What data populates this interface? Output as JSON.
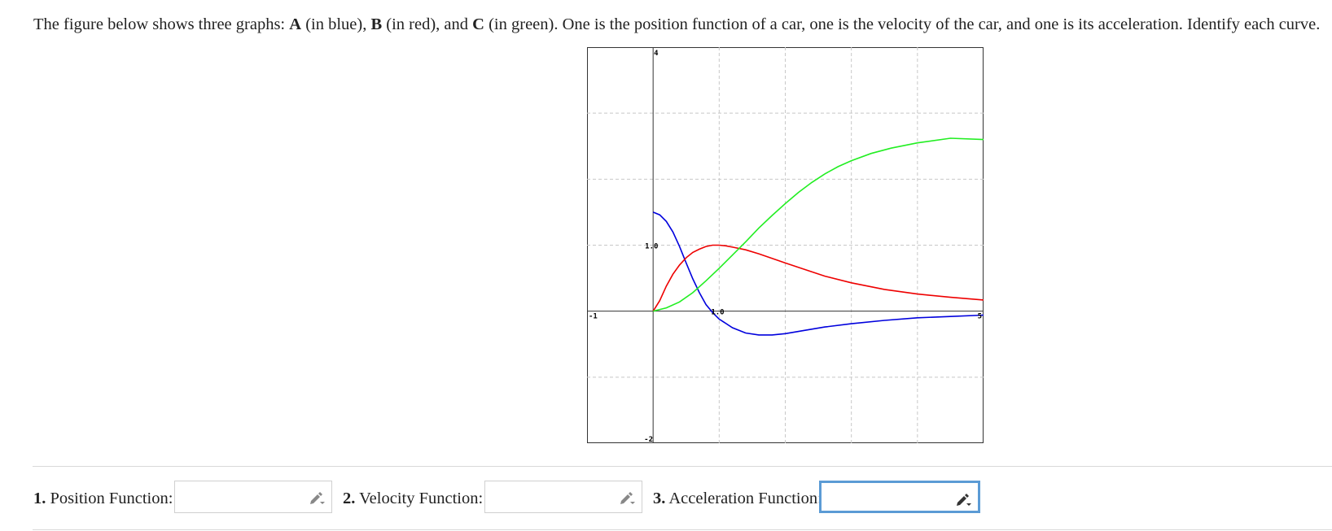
{
  "question": {
    "text_1": "The figure below shows three graphs: ",
    "label_a": "A",
    "text_2": " (in blue), ",
    "label_b": "B",
    "text_3": " (in red), and ",
    "label_c": "C",
    "text_4": " (in green). One is the position function of a car, one is the velocity of the car, and one is its acceleration. Identify each curve."
  },
  "chart_data": {
    "type": "line",
    "xlim": [
      -1,
      5
    ],
    "ylim": [
      -2,
      4
    ],
    "grid": true,
    "tick_labels": {
      "x_min": "-1",
      "x_max": "5",
      "x_mid": "1.0",
      "y_min": "-2",
      "y_max": "4",
      "y_mid": "1.0"
    },
    "series": [
      {
        "color": "#0000dd",
        "x": [
          0,
          0.1,
          0.2,
          0.3,
          0.4,
          0.5,
          0.6,
          0.7,
          0.8,
          0.9,
          1.0,
          1.2,
          1.4,
          1.6,
          1.8,
          2.0,
          2.3,
          2.6,
          3.0,
          3.5,
          4.0,
          4.5,
          5.0
        ],
        "y": [
          1.5,
          1.46,
          1.36,
          1.2,
          0.98,
          0.73,
          0.49,
          0.28,
          0.1,
          -0.02,
          -0.12,
          -0.25,
          -0.33,
          -0.36,
          -0.36,
          -0.34,
          -0.29,
          -0.24,
          -0.19,
          -0.14,
          -0.1,
          -0.08,
          -0.06
        ]
      },
      {
        "color": "#ee0000",
        "x": [
          0,
          0.1,
          0.2,
          0.3,
          0.4,
          0.5,
          0.6,
          0.7,
          0.8,
          0.9,
          1.0,
          1.1,
          1.2,
          1.4,
          1.6,
          1.8,
          2.0,
          2.3,
          2.6,
          3.0,
          3.5,
          4.0,
          4.5,
          5.0
        ],
        "y": [
          0,
          0.16,
          0.38,
          0.56,
          0.7,
          0.81,
          0.89,
          0.94,
          0.98,
          1.0,
          1.0,
          0.99,
          0.97,
          0.93,
          0.87,
          0.8,
          0.73,
          0.63,
          0.53,
          0.43,
          0.33,
          0.26,
          0.21,
          0.17
        ]
      },
      {
        "color": "#22ee22",
        "x": [
          0,
          0.2,
          0.4,
          0.6,
          0.8,
          1.0,
          1.2,
          1.4,
          1.6,
          1.8,
          2.0,
          2.2,
          2.4,
          2.6,
          2.8,
          3.0,
          3.3,
          3.6,
          4.0,
          4.5,
          5.0
        ],
        "y": [
          0,
          0.05,
          0.14,
          0.28,
          0.46,
          0.65,
          0.85,
          1.05,
          1.26,
          1.45,
          1.63,
          1.8,
          1.95,
          2.08,
          2.19,
          2.28,
          2.39,
          2.47,
          2.55,
          2.62,
          2.6
        ]
      }
    ]
  },
  "answers": [
    {
      "number": "1.",
      "label": "Position Function:",
      "value": ""
    },
    {
      "number": "2.",
      "label": "Velocity Function:",
      "value": ""
    },
    {
      "number": "3.",
      "label": "Acceleration Function:",
      "value": ""
    }
  ],
  "colors": {
    "focus_border": "#5b9bd5"
  },
  "icons": {
    "answer_edit": "pencil-icon"
  }
}
